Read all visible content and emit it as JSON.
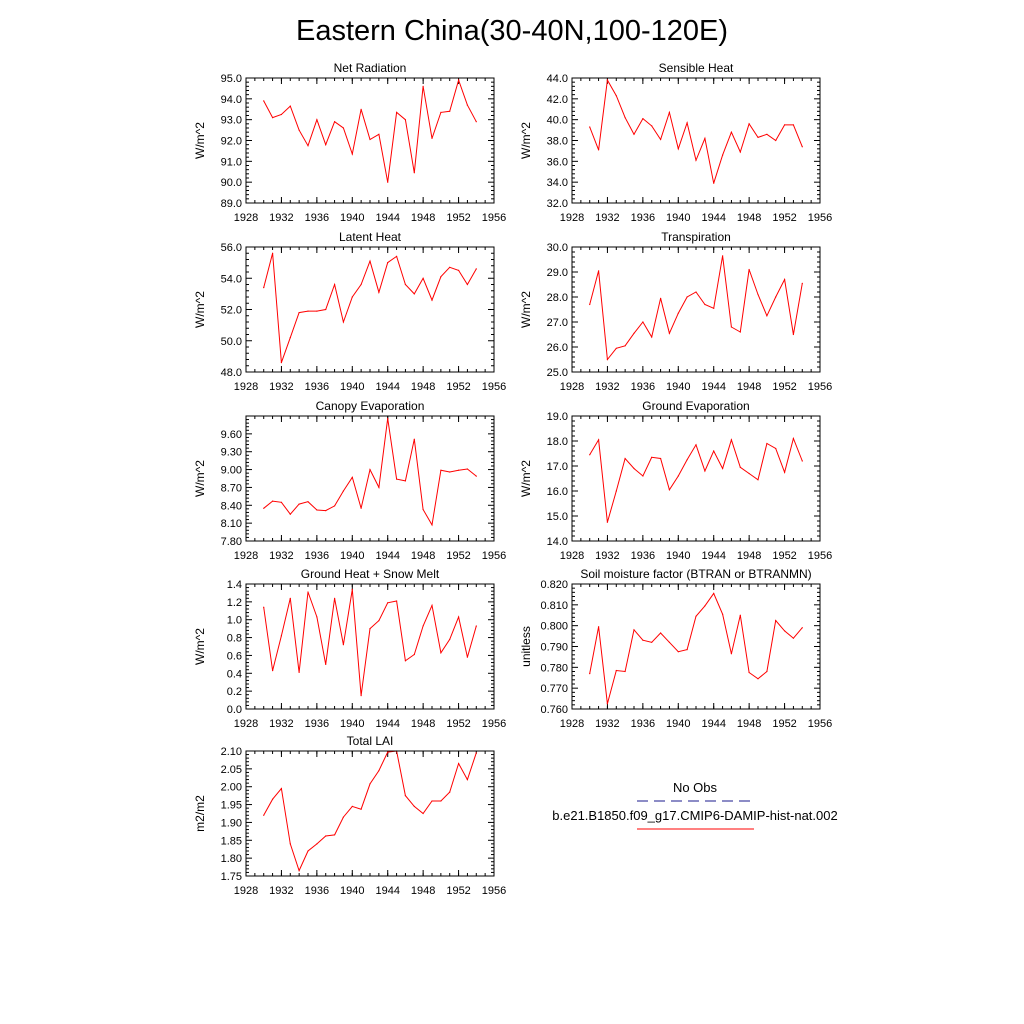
{
  "figure": {
    "title": "Eastern China(30-40N,100-120E)"
  },
  "legend": {
    "obs_label": "No Obs",
    "obs_color": "#1a1a8c",
    "model_label": "b.e21.B1850.f09_g17.CMIP6-DAMIP-hist-nat.002",
    "model_color": "#ff0000"
  },
  "chart_data": [
    {
      "type": "line",
      "title": "Net Radiation",
      "ylabel": "W/m^2",
      "xlim": [
        1928,
        1956
      ],
      "ylim": [
        89.0,
        95.0
      ],
      "xticks": [
        1928,
        1932,
        1936,
        1940,
        1944,
        1948,
        1952,
        1956
      ],
      "xtick_labels": [
        "1928",
        "1932",
        "1936",
        "1940",
        "1944",
        "1948",
        "1952",
        "1956"
      ],
      "yticks": [
        89.0,
        90.0,
        91.0,
        92.0,
        93.0,
        94.0,
        95.0
      ],
      "ytick_labels": [
        "89.0",
        "90.0",
        "91.0",
        "92.0",
        "93.0",
        "94.0",
        "95.0"
      ],
      "series": [
        {
          "color": "#ff0000",
          "x": [
            1930,
            1931,
            1932,
            1933,
            1934,
            1935,
            1936,
            1937,
            1938,
            1939,
            1940,
            1941,
            1942,
            1943,
            1944,
            1945,
            1946,
            1947,
            1948,
            1949,
            1950,
            1951,
            1952,
            1953,
            1954
          ],
          "y": [
            93.9,
            93.1,
            93.25,
            93.65,
            92.5,
            91.75,
            93.0,
            91.8,
            92.9,
            92.6,
            91.35,
            93.5,
            92.05,
            92.3,
            90.0,
            93.35,
            93.0,
            90.45,
            94.6,
            92.1,
            93.35,
            93.4,
            94.9,
            93.7,
            92.9
          ]
        }
      ]
    },
    {
      "type": "line",
      "title": "Sensible Heat",
      "ylabel": "W/m^2",
      "xlim": [
        1928,
        1956
      ],
      "ylim": [
        32.0,
        44.0
      ],
      "xticks": [
        1928,
        1932,
        1936,
        1940,
        1944,
        1948,
        1952,
        1956
      ],
      "xtick_labels": [
        "1928",
        "1932",
        "1936",
        "1940",
        "1944",
        "1948",
        "1952",
        "1956"
      ],
      "yticks": [
        32.0,
        34.0,
        36.0,
        38.0,
        40.0,
        42.0,
        44.0
      ],
      "ytick_labels": [
        "32.0",
        "34.0",
        "36.0",
        "38.0",
        "40.0",
        "42.0",
        "44.0"
      ],
      "series": [
        {
          "color": "#ff0000",
          "x": [
            1930,
            1931,
            1932,
            1933,
            1934,
            1935,
            1936,
            1937,
            1938,
            1939,
            1940,
            1941,
            1942,
            1943,
            1944,
            1945,
            1946,
            1947,
            1948,
            1949,
            1950,
            1951,
            1952,
            1953,
            1954
          ],
          "y": [
            39.3,
            37.1,
            43.8,
            42.3,
            40.2,
            38.6,
            40.1,
            39.4,
            38.1,
            40.7,
            37.2,
            39.7,
            36.1,
            38.2,
            33.9,
            36.6,
            38.8,
            36.9,
            39.6,
            38.3,
            38.6,
            38.0,
            39.5,
            39.5,
            37.4
          ]
        }
      ]
    },
    {
      "type": "line",
      "title": "Latent Heat",
      "ylabel": "W/m^2",
      "xlim": [
        1928,
        1956
      ],
      "ylim": [
        48.0,
        56.0
      ],
      "xticks": [
        1928,
        1932,
        1936,
        1940,
        1944,
        1948,
        1952,
        1956
      ],
      "xtick_labels": [
        "1928",
        "1932",
        "1936",
        "1940",
        "1944",
        "1948",
        "1952",
        "1956"
      ],
      "yticks": [
        48.0,
        50.0,
        52.0,
        54.0,
        56.0
      ],
      "ytick_labels": [
        "48.0",
        "50.0",
        "52.0",
        "54.0",
        "56.0"
      ],
      "series": [
        {
          "color": "#ff0000",
          "x": [
            1930,
            1931,
            1932,
            1933,
            1934,
            1935,
            1936,
            1937,
            1938,
            1939,
            1940,
            1941,
            1942,
            1943,
            1944,
            1945,
            1946,
            1947,
            1948,
            1949,
            1950,
            1951,
            1952,
            1953,
            1954
          ],
          "y": [
            53.4,
            55.6,
            48.6,
            50.2,
            51.8,
            51.9,
            51.9,
            52.0,
            53.6,
            51.2,
            52.8,
            53.6,
            55.1,
            53.1,
            55.0,
            55.4,
            53.6,
            53.0,
            54.0,
            52.6,
            54.1,
            54.7,
            54.5,
            53.6,
            54.6
          ]
        }
      ]
    },
    {
      "type": "line",
      "title": "Transpiration",
      "ylabel": "W/m^2",
      "xlim": [
        1928,
        1956
      ],
      "ylim": [
        25.0,
        30.0
      ],
      "xticks": [
        1928,
        1932,
        1936,
        1940,
        1944,
        1948,
        1952,
        1956
      ],
      "xtick_labels": [
        "1928",
        "1932",
        "1936",
        "1940",
        "1944",
        "1948",
        "1952",
        "1956"
      ],
      "yticks": [
        25.0,
        26.0,
        27.0,
        28.0,
        29.0,
        30.0
      ],
      "ytick_labels": [
        "25.0",
        "26.0",
        "27.0",
        "28.0",
        "29.0",
        "30.0"
      ],
      "series": [
        {
          "color": "#ff0000",
          "x": [
            1930,
            1931,
            1932,
            1933,
            1934,
            1935,
            1936,
            1937,
            1938,
            1939,
            1940,
            1941,
            1942,
            1943,
            1944,
            1945,
            1946,
            1947,
            1948,
            1949,
            1950,
            1951,
            1952,
            1953,
            1954
          ],
          "y": [
            27.7,
            29.05,
            25.5,
            25.95,
            26.05,
            26.55,
            27.0,
            26.4,
            27.95,
            26.55,
            27.35,
            28.0,
            28.2,
            27.7,
            27.55,
            29.65,
            26.8,
            26.6,
            29.1,
            28.1,
            27.25,
            28.0,
            28.7,
            26.5,
            28.55
          ]
        }
      ]
    },
    {
      "type": "line",
      "title": "Canopy Evaporation",
      "ylabel": "W/m^2",
      "xlim": [
        1928,
        1956
      ],
      "ylim": [
        7.8,
        9.9
      ],
      "xticks": [
        1928,
        1932,
        1936,
        1940,
        1944,
        1948,
        1952,
        1956
      ],
      "xtick_labels": [
        "1928",
        "1932",
        "1936",
        "1940",
        "1944",
        "1948",
        "1952",
        "1956"
      ],
      "yticks": [
        7.8,
        8.1,
        8.4,
        8.7,
        9.0,
        9.3,
        9.6
      ],
      "ytick_labels": [
        "7.80",
        "8.10",
        "8.40",
        "8.70",
        "9.00",
        "9.30",
        "9.60"
      ],
      "series": [
        {
          "color": "#ff0000",
          "x": [
            1930,
            1931,
            1932,
            1933,
            1934,
            1935,
            1936,
            1937,
            1938,
            1939,
            1940,
            1941,
            1942,
            1943,
            1944,
            1945,
            1946,
            1947,
            1948,
            1949,
            1950,
            1951,
            1952,
            1953,
            1954
          ],
          "y": [
            8.35,
            8.47,
            8.45,
            8.25,
            8.42,
            8.46,
            8.32,
            8.31,
            8.39,
            8.64,
            8.87,
            8.35,
            9.0,
            8.7,
            9.86,
            8.84,
            8.81,
            9.51,
            8.33,
            8.07,
            8.99,
            8.96,
            8.99,
            9.01,
            8.89
          ]
        }
      ]
    },
    {
      "type": "line",
      "title": "Ground Evaporation",
      "ylabel": "W/m^2",
      "xlim": [
        1928,
        1956
      ],
      "ylim": [
        14.0,
        19.0
      ],
      "xticks": [
        1928,
        1932,
        1936,
        1940,
        1944,
        1948,
        1952,
        1956
      ],
      "xtick_labels": [
        "1928",
        "1932",
        "1936",
        "1940",
        "1944",
        "1948",
        "1952",
        "1956"
      ],
      "yticks": [
        14.0,
        15.0,
        16.0,
        17.0,
        18.0,
        19.0
      ],
      "ytick_labels": [
        "14.0",
        "15.0",
        "16.0",
        "17.0",
        "18.0",
        "19.0"
      ],
      "series": [
        {
          "color": "#ff0000",
          "x": [
            1930,
            1931,
            1932,
            1933,
            1934,
            1935,
            1936,
            1937,
            1938,
            1939,
            1940,
            1941,
            1942,
            1943,
            1944,
            1945,
            1946,
            1947,
            1948,
            1949,
            1950,
            1951,
            1952,
            1953,
            1954
          ],
          "y": [
            17.45,
            18.05,
            14.75,
            16.0,
            17.3,
            16.9,
            16.6,
            17.35,
            17.3,
            16.05,
            16.6,
            17.25,
            17.85,
            16.8,
            17.6,
            16.9,
            18.05,
            16.95,
            16.7,
            16.45,
            17.9,
            17.7,
            16.75,
            18.1,
            17.2
          ]
        }
      ]
    },
    {
      "type": "line",
      "title": "Ground Heat + Snow Melt",
      "ylabel": "W/m^2",
      "xlim": [
        1928,
        1956
      ],
      "ylim": [
        0.0,
        1.4
      ],
      "xticks": [
        1928,
        1932,
        1936,
        1940,
        1944,
        1948,
        1952,
        1956
      ],
      "xtick_labels": [
        "1928",
        "1932",
        "1936",
        "1940",
        "1944",
        "1948",
        "1952",
        "1956"
      ],
      "yticks": [
        0.0,
        0.2,
        0.4,
        0.6,
        0.8,
        1.0,
        1.2,
        1.4
      ],
      "ytick_labels": [
        "0.0",
        "0.2",
        "0.4",
        "0.6",
        "0.8",
        "1.0",
        "1.2",
        "1.4"
      ],
      "series": [
        {
          "color": "#ff0000",
          "x": [
            1930,
            1931,
            1932,
            1933,
            1934,
            1935,
            1936,
            1937,
            1938,
            1939,
            1940,
            1941,
            1942,
            1943,
            1944,
            1945,
            1946,
            1947,
            1948,
            1949,
            1950,
            1951,
            1952,
            1953,
            1954
          ],
          "y": [
            1.14,
            0.43,
            0.82,
            1.24,
            0.41,
            1.31,
            1.03,
            0.5,
            1.24,
            0.72,
            1.34,
            0.15,
            0.9,
            0.99,
            1.19,
            1.21,
            0.54,
            0.61,
            0.93,
            1.16,
            0.63,
            0.78,
            1.03,
            0.58,
            0.93
          ]
        }
      ]
    },
    {
      "type": "line",
      "title": "Soil moisture factor (BTRAN or BTRANMN)",
      "ylabel": "unitless",
      "xlim": [
        1928,
        1956
      ],
      "ylim": [
        0.76,
        0.82
      ],
      "xticks": [
        1928,
        1932,
        1936,
        1940,
        1944,
        1948,
        1952,
        1956
      ],
      "xtick_labels": [
        "1928",
        "1932",
        "1936",
        "1940",
        "1944",
        "1948",
        "1952",
        "1956"
      ],
      "yticks": [
        0.76,
        0.77,
        0.78,
        0.79,
        0.8,
        0.81,
        0.82
      ],
      "ytick_labels": [
        "0.760",
        "0.770",
        "0.780",
        "0.790",
        "0.800",
        "0.810",
        "0.820"
      ],
      "series": [
        {
          "color": "#ff0000",
          "x": [
            1930,
            1931,
            1932,
            1933,
            1934,
            1935,
            1936,
            1937,
            1938,
            1939,
            1940,
            1941,
            1942,
            1943,
            1944,
            1945,
            1946,
            1947,
            1948,
            1949,
            1950,
            1951,
            1952,
            1953,
            1954
          ],
          "y": [
            0.777,
            0.7995,
            0.7625,
            0.7785,
            0.778,
            0.798,
            0.793,
            0.792,
            0.7965,
            0.792,
            0.7875,
            0.7885,
            0.8045,
            0.8095,
            0.8155,
            0.8055,
            0.7865,
            0.805,
            0.7775,
            0.7745,
            0.778,
            0.8025,
            0.7975,
            0.794,
            0.799
          ]
        }
      ]
    },
    {
      "type": "line",
      "title": "Total LAI",
      "ylabel": "m2/m2",
      "xlim": [
        1928,
        1956
      ],
      "ylim": [
        1.75,
        2.1
      ],
      "xticks": [
        1928,
        1932,
        1936,
        1940,
        1944,
        1948,
        1952,
        1956
      ],
      "xtick_labels": [
        "1928",
        "1932",
        "1936",
        "1940",
        "1944",
        "1948",
        "1952",
        "1956"
      ],
      "yticks": [
        1.75,
        1.8,
        1.85,
        1.9,
        1.95,
        2.0,
        2.05,
        2.1
      ],
      "ytick_labels": [
        "1.75",
        "1.80",
        "1.85",
        "1.90",
        "1.95",
        "2.00",
        "2.05",
        "2.10"
      ],
      "series": [
        {
          "color": "#ff0000",
          "x": [
            1930,
            1931,
            1932,
            1933,
            1934,
            1935,
            1936,
            1937,
            1938,
            1939,
            1940,
            1941,
            1942,
            1943,
            1944,
            1945,
            1946,
            1947,
            1948,
            1949,
            1950,
            1951,
            1952,
            1953,
            1954
          ],
          "y": [
            1.92,
            1.965,
            1.995,
            1.84,
            1.765,
            1.82,
            1.84,
            1.862,
            1.865,
            1.915,
            1.945,
            1.937,
            2.008,
            2.045,
            2.097,
            2.1,
            1.975,
            1.945,
            1.925,
            1.96,
            1.96,
            1.985,
            2.065,
            2.02,
            2.095
          ]
        }
      ]
    }
  ]
}
